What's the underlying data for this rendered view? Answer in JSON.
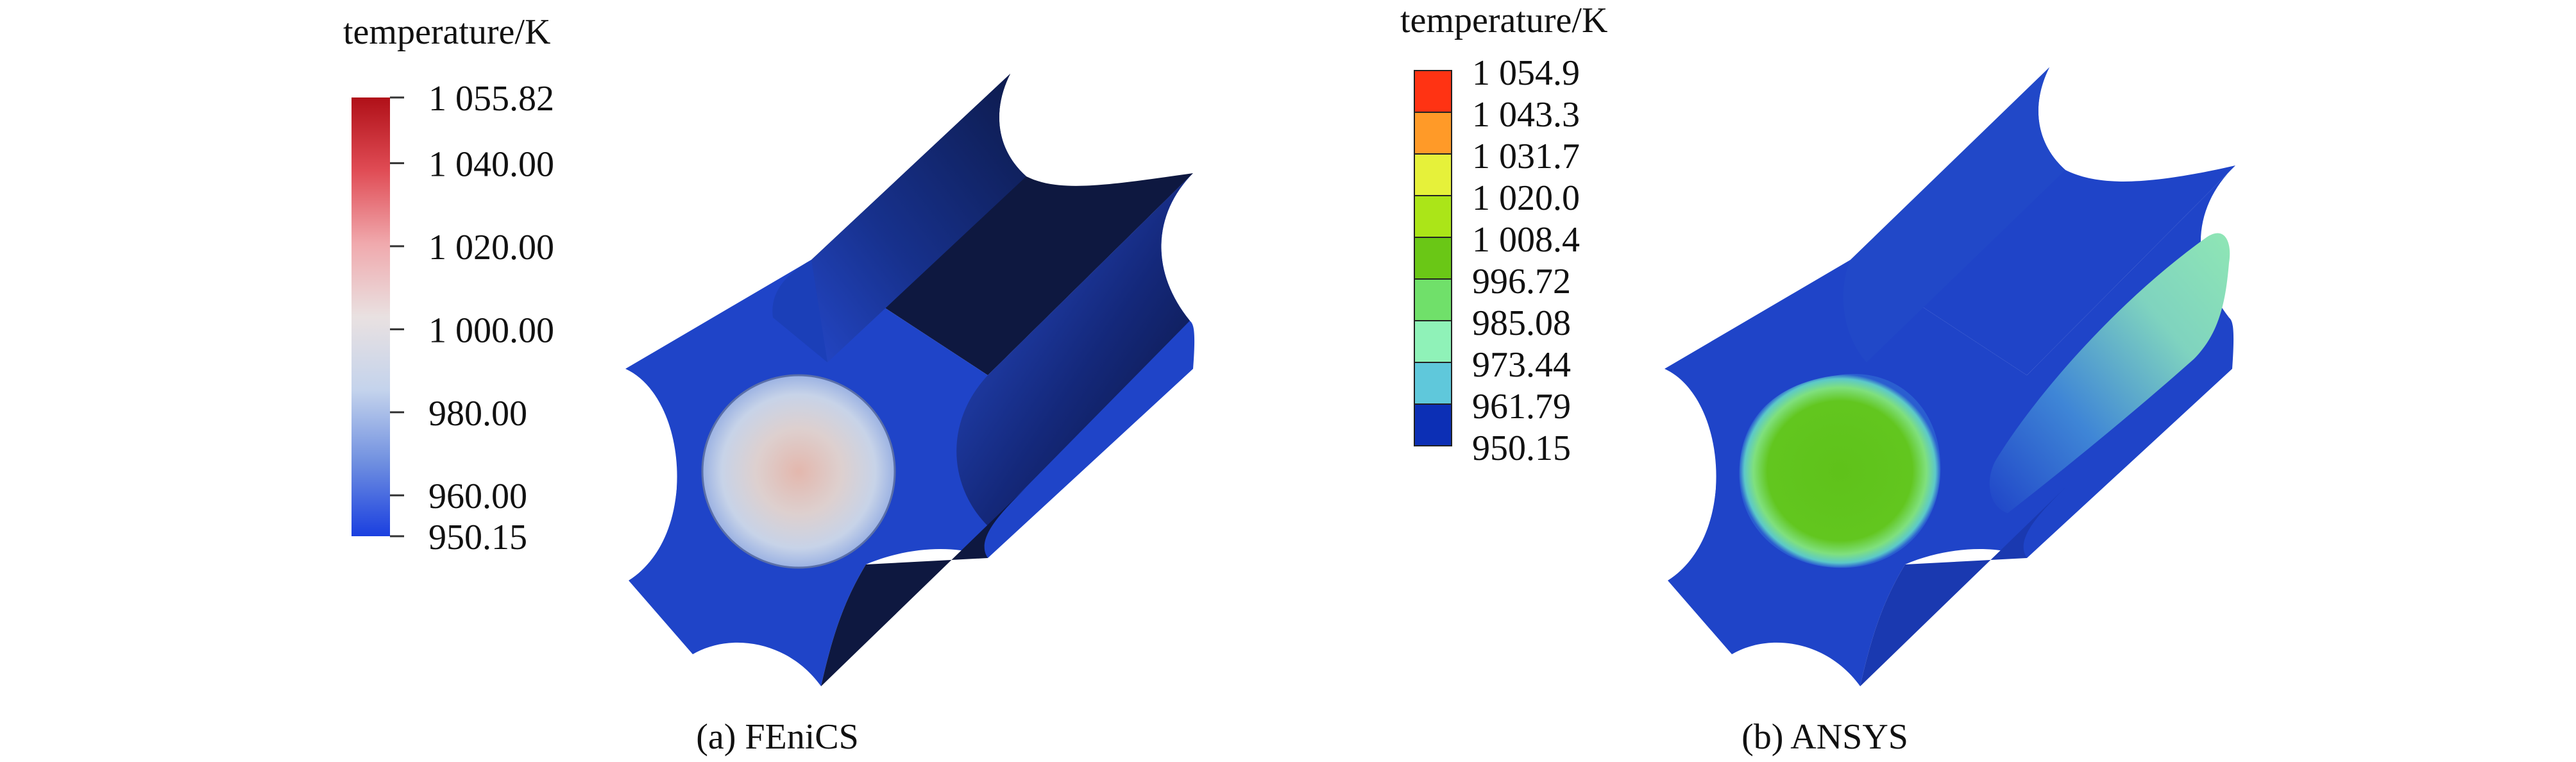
{
  "panel_a": {
    "legend_title": "temperature/K",
    "tick_labels": [
      "1 055.82",
      "1 040.00",
      "1 020.00",
      "1 000.00",
      "980.00",
      "960.00",
      "950.15"
    ],
    "tick_values": [
      1055.82,
      1040.0,
      1020.0,
      1000.0,
      980.0,
      960.0,
      950.15
    ],
    "range": [
      950.15,
      1055.82
    ],
    "colormap": [
      "#1a3fe0",
      "#6f8fe0",
      "#c4d3ec",
      "#e9e1e1",
      "#f0a9ad",
      "#e04c55",
      "#b01018"
    ],
    "caption": "(a) FEniCS"
  },
  "panel_b": {
    "legend_title": "temperature/K",
    "levels": [
      "1 054.9",
      "1 043.3",
      "1 031.7",
      "1 020.0",
      "1 008.4",
      "996.72",
      "985.08",
      "973.44",
      "961.79",
      "950.15"
    ],
    "level_colors": [
      "#ff3313",
      "#ff9a28",
      "#e6f13a",
      "#abe518",
      "#6ac716",
      "#70e06a",
      "#8ff2b8",
      "#5fc8db",
      "#0c2fb5"
    ],
    "caption": "(b) ANSYS"
  },
  "colors": {
    "body_blue": "#1f44c8",
    "groove_dark": "#101a3a",
    "fenics_center": "#e7c9c2",
    "ansys_center": "#5cbf20"
  }
}
